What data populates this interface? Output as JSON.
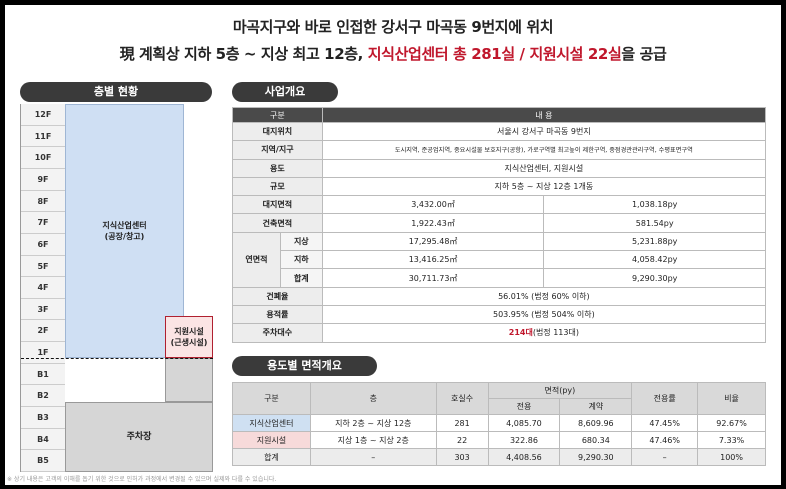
{
  "headline": {
    "line1": "마곡지구와 바로 인접한 강서구 마곡동 9번지에 위치",
    "line2_prefix": "現 계획상 지하 5층 ~ 지상 최고 12층, ",
    "line2_highlight": "지식산업센터 총 281실 / 지원시설 22실",
    "line2_suffix": "을 공급"
  },
  "floor_section": {
    "title": "층별 현황",
    "floors": [
      "12F",
      "11F",
      "10F",
      "9F",
      "8F",
      "7F",
      "6F",
      "5F",
      "4F",
      "3F",
      "2F",
      "1F",
      "B1",
      "B2",
      "B3",
      "B4",
      "B5"
    ],
    "block_industrial": "지식산업센터\n(공장/창고)",
    "block_support": "지원시설\n(근생시설)",
    "block_parking": "주차장"
  },
  "overview": {
    "title": "사업개요",
    "header": [
      "구분",
      "내    용"
    ],
    "rows": {
      "site_location": {
        "label": "대지위치",
        "value": "서울시 강서구 마곡동 9번지"
      },
      "zone": {
        "label": "지역/지구",
        "value": "도시지역, 준공업지역, 중요시설물 보호지구(공항), 가로구역별 최고높이 제한구역, 중점경관관리구역, 수평표면구역"
      },
      "use": {
        "label": "용도",
        "value": "지식산업센터, 지원시설"
      },
      "scale": {
        "label": "규모",
        "value": "지하 5층 ~ 지상 12층 1개동"
      },
      "site_area": {
        "label": "대지면적",
        "m2": "3,432.00㎡",
        "py": "1,038.18py"
      },
      "building_area": {
        "label": "건축면적",
        "m2": "1,922.43㎡",
        "py": "581.54py"
      },
      "floor_area": {
        "label": "연면적",
        "above": {
          "label": "지상",
          "m2": "17,295.48㎡",
          "py": "5,231.88py"
        },
        "below": {
          "label": "지하",
          "m2": "13,416.25㎡",
          "py": "4,058.42py"
        },
        "total": {
          "label": "합계",
          "m2": "30,711.73㎡",
          "py": "9,290.30py"
        }
      },
      "coverage": {
        "label": "건폐율",
        "value": "56.01% (법정 60% 이하)"
      },
      "far": {
        "label": "용적률",
        "value": "503.95% (법정 504% 이하)"
      },
      "parking": {
        "label": "주차대수",
        "value_red": "214대",
        "value_rest": "(법정 113대)"
      }
    }
  },
  "area_by_use": {
    "title": "용도별 면적개요",
    "headers": {
      "div": "구분",
      "floor": "층",
      "rooms": "호실수",
      "area": "면적(py)",
      "exclusive": "전용",
      "contract": "계약",
      "ratio": "전용률",
      "share": "비율"
    },
    "rows": [
      {
        "div": "지식산업센터",
        "floor": "지하 2층 ~ 지상 12층",
        "rooms": "281",
        "exclusive": "4,085.70",
        "contract": "8,609.96",
        "ratio": "47.45%",
        "share": "92.67%"
      },
      {
        "div": "지원시설",
        "floor": "지상 1층 ~ 지상 2층",
        "rooms": "22",
        "exclusive": "322.86",
        "contract": "680.34",
        "ratio": "47.46%",
        "share": "7.33%"
      },
      {
        "div": "합계",
        "floor": "–",
        "rooms": "303",
        "exclusive": "4,408.56",
        "contract": "9,290.30",
        "ratio": "–",
        "share": "100%"
      }
    ]
  },
  "footnote": "※ 상기 내용은 고객의 이해를 돕기 위한 것으로 인허가 과정에서 변경될 수 있으며 실제와 다를 수 있습니다."
}
